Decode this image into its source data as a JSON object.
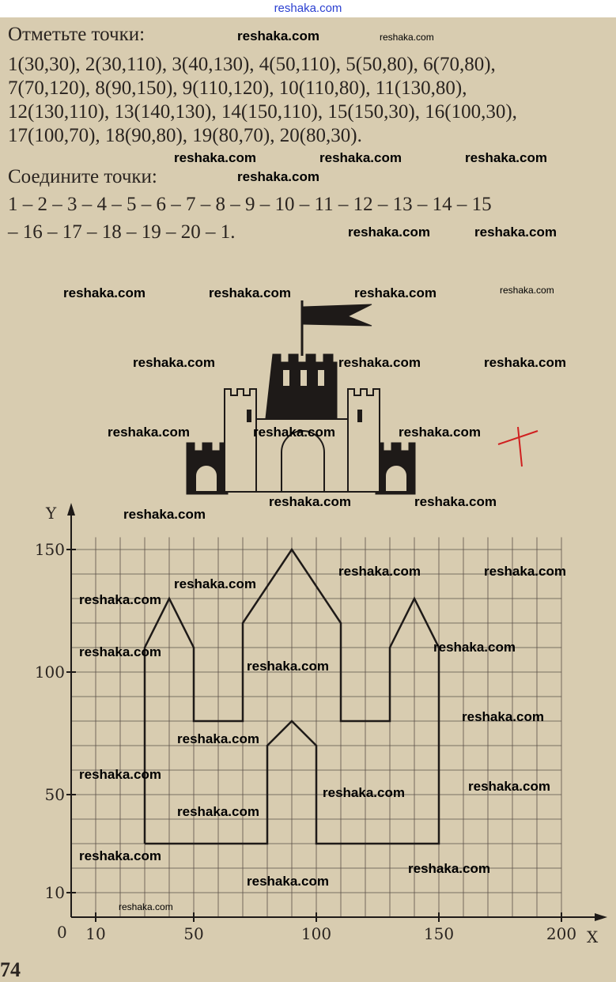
{
  "header": {
    "site": "reshaka.com"
  },
  "task": {
    "mark_title": "Отметьте точки:",
    "points_lines": [
      "1(30,30), 2(30,110), 3(40,130), 4(50,110), 5(50,80), 6(70,80),",
      "7(70,120), 8(90,150), 9(110,120), 10(110,80), 11(130,80),",
      "12(130,110), 13(140,130), 14(150,110), 15(150,30), 16(100,30),",
      "17(100,70), 18(90,80), 19(80,70), 20(80,30)."
    ],
    "connect_title": "Соедините точки:",
    "connect_lines": [
      "1 – 2 – 3 – 4 – 5 – 6 – 7 – 8 – 9 – 10 – 11 – 12 – 13 – 14 – 15",
      "– 16 – 17 – 18 – 19 – 20 – 1."
    ]
  },
  "watermark": "reshaka.com",
  "page_number": "74",
  "colors": {
    "paper": "#d8ccb0",
    "ink": "#2a2420",
    "header_link": "#2a3fd0",
    "red_mark": "#d02020"
  },
  "chart_data": {
    "type": "line",
    "xlabel": "X",
    "ylabel": "Y",
    "origin_label": "0",
    "x_ticks": [
      10,
      50,
      100,
      150,
      200
    ],
    "y_ticks": [
      10,
      50,
      100,
      150
    ],
    "xlim": [
      0,
      200
    ],
    "ylim": [
      0,
      155
    ],
    "grid": true,
    "points": [
      [
        30,
        30
      ],
      [
        30,
        110
      ],
      [
        40,
        130
      ],
      [
        50,
        110
      ],
      [
        50,
        80
      ],
      [
        70,
        80
      ],
      [
        70,
        120
      ],
      [
        90,
        150
      ],
      [
        110,
        120
      ],
      [
        110,
        80
      ],
      [
        130,
        80
      ],
      [
        130,
        110
      ],
      [
        140,
        130
      ],
      [
        150,
        110
      ],
      [
        150,
        30
      ],
      [
        100,
        30
      ],
      [
        100,
        70
      ],
      [
        90,
        80
      ],
      [
        80,
        70
      ],
      [
        80,
        30
      ],
      [
        30,
        30
      ]
    ]
  }
}
